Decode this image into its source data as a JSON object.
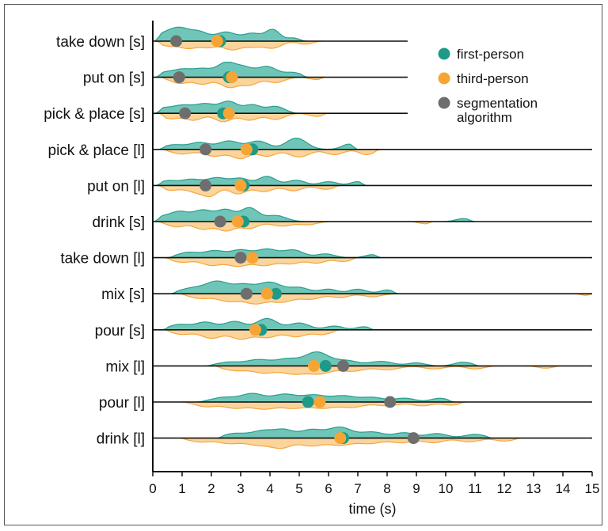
{
  "chart_data": {
    "type": "ridgeline",
    "xlabel": "time (s)",
    "xlim": [
      0,
      15
    ],
    "x_ticks": [
      "0",
      "1",
      "2",
      "3",
      "4",
      "5",
      "6",
      "7",
      "8",
      "9",
      "10",
      "11",
      "12",
      "13",
      "14",
      "15"
    ],
    "colors": {
      "first_person_fill": "#6fc6b8",
      "first_person_line": "#2a9d8f",
      "first_person_dot": "#1f9a86",
      "third_person_fill": "#fbd49c",
      "third_person_line": "#f4a640",
      "third_person_dot": "#f6a535",
      "segmentation_dot": "#6e6e6e"
    },
    "legend": [
      {
        "key": "first",
        "label": "first-person"
      },
      {
        "key": "third",
        "label": "third-person"
      },
      {
        "key": "seg",
        "label": "segmentation algorithm"
      }
    ],
    "rows": [
      {
        "label": "take down [s]",
        "line_end": 8.7,
        "first_mean": 2.3,
        "third_mean": 2.2,
        "seg_mean": 0.8,
        "first_peaks": [
          [
            0.3,
            0.35,
            0.3
          ],
          [
            0.9,
            0.85,
            0.35
          ],
          [
            1.6,
            0.55,
            0.3
          ],
          [
            2.5,
            0.6,
            0.35
          ],
          [
            3.4,
            0.5,
            0.3
          ],
          [
            4.1,
            0.75,
            0.25
          ],
          [
            4.8,
            0.2,
            0.2
          ]
        ],
        "first_range": [
          0.05,
          5.3
        ],
        "third_peaks": [
          [
            0.5,
            0.3,
            0.3
          ],
          [
            1.2,
            0.45,
            0.3
          ],
          [
            1.9,
            0.4,
            0.3
          ],
          [
            2.7,
            0.55,
            0.3
          ],
          [
            3.4,
            0.35,
            0.3
          ],
          [
            4.1,
            0.45,
            0.3
          ],
          [
            5.2,
            0.2,
            0.25
          ]
        ],
        "third_range": [
          0.1,
          5.8
        ]
      },
      {
        "label": "put on [s]",
        "line_end": 8.7,
        "first_mean": 2.6,
        "third_mean": 2.7,
        "seg_mean": 0.9,
        "first_peaks": [
          [
            0.4,
            0.3,
            0.3
          ],
          [
            1.0,
            0.45,
            0.3
          ],
          [
            1.7,
            0.55,
            0.35
          ],
          [
            2.5,
            0.9,
            0.3
          ],
          [
            3.1,
            0.6,
            0.3
          ],
          [
            3.9,
            0.7,
            0.35
          ],
          [
            4.8,
            0.3,
            0.3
          ]
        ],
        "first_range": [
          0.1,
          5.3
        ],
        "third_peaks": [
          [
            0.9,
            0.4,
            0.3
          ],
          [
            1.7,
            0.45,
            0.3
          ],
          [
            2.6,
            0.65,
            0.3
          ],
          [
            3.3,
            0.5,
            0.3
          ],
          [
            4.2,
            0.35,
            0.3
          ],
          [
            5.6,
            0.15,
            0.25
          ]
        ],
        "third_range": [
          0.2,
          5.9
        ]
      },
      {
        "label": "pick & place [s]",
        "line_end": 8.7,
        "first_mean": 2.4,
        "third_mean": 2.6,
        "seg_mean": 1.1,
        "first_peaks": [
          [
            0.3,
            0.3,
            0.3
          ],
          [
            1.0,
            0.5,
            0.35
          ],
          [
            1.8,
            0.6,
            0.35
          ],
          [
            2.6,
            0.75,
            0.3
          ],
          [
            3.4,
            0.55,
            0.3
          ],
          [
            4.2,
            0.45,
            0.3
          ]
        ],
        "first_range": [
          0.1,
          5.0
        ],
        "third_peaks": [
          [
            0.6,
            0.35,
            0.3
          ],
          [
            1.4,
            0.45,
            0.3
          ],
          [
            2.4,
            0.55,
            0.3
          ],
          [
            3.3,
            0.45,
            0.3
          ],
          [
            4.2,
            0.4,
            0.3
          ],
          [
            5.6,
            0.2,
            0.25
          ]
        ],
        "third_range": [
          0.2,
          6.0
        ]
      },
      {
        "label": "pick & place [l]",
        "line_end": 15,
        "first_mean": 3.4,
        "third_mean": 3.2,
        "seg_mean": 1.8,
        "first_peaks": [
          [
            0.7,
            0.3,
            0.35
          ],
          [
            1.6,
            0.45,
            0.35
          ],
          [
            2.6,
            0.55,
            0.35
          ],
          [
            3.6,
            0.55,
            0.35
          ],
          [
            4.9,
            0.75,
            0.35
          ],
          [
            6.7,
            0.35,
            0.25
          ]
        ],
        "first_range": [
          0.2,
          7.0
        ],
        "third_peaks": [
          [
            1.0,
            0.3,
            0.35
          ],
          [
            2.1,
            0.45,
            0.35
          ],
          [
            3.0,
            0.6,
            0.3
          ],
          [
            3.9,
            0.45,
            0.3
          ],
          [
            5.0,
            0.5,
            0.35
          ],
          [
            6.2,
            0.35,
            0.3
          ],
          [
            7.3,
            0.35,
            0.25
          ]
        ],
        "third_range": [
          0.3,
          7.8
        ]
      },
      {
        "label": "put on [l]",
        "line_end": 15,
        "first_mean": 3.1,
        "third_mean": 3.0,
        "seg_mean": 1.8,
        "first_peaks": [
          [
            0.5,
            0.3,
            0.3
          ],
          [
            1.3,
            0.4,
            0.35
          ],
          [
            2.2,
            0.5,
            0.35
          ],
          [
            3.0,
            0.45,
            0.3
          ],
          [
            3.9,
            0.6,
            0.3
          ],
          [
            4.9,
            0.35,
            0.3
          ],
          [
            6.0,
            0.25,
            0.3
          ],
          [
            7.0,
            0.25,
            0.25
          ]
        ],
        "first_range": [
          0.1,
          7.3
        ],
        "third_peaks": [
          [
            0.6,
            0.3,
            0.3
          ],
          [
            1.5,
            0.45,
            0.35
          ],
          [
            2.0,
            0.55,
            0.25
          ],
          [
            2.9,
            0.55,
            0.3
          ],
          [
            3.8,
            0.4,
            0.3
          ],
          [
            4.8,
            0.35,
            0.3
          ],
          [
            5.9,
            0.25,
            0.3
          ]
        ],
        "third_range": [
          0.2,
          6.4
        ]
      },
      {
        "label": "drink [s]",
        "line_end": 15,
        "first_mean": 3.1,
        "third_mean": 2.9,
        "seg_mean": 2.3,
        "first_peaks": [
          [
            0.3,
            0.3,
            0.3
          ],
          [
            0.9,
            0.6,
            0.3
          ],
          [
            1.7,
            0.75,
            0.35
          ],
          [
            2.5,
            0.75,
            0.3
          ],
          [
            3.3,
            0.9,
            0.3
          ],
          [
            4.2,
            0.4,
            0.35
          ],
          [
            10.6,
            0.2,
            0.25
          ]
        ],
        "first_range": [
          0.05,
          11.0
        ],
        "third_peaks": [
          [
            0.8,
            0.35,
            0.3
          ],
          [
            1.7,
            0.5,
            0.3
          ],
          [
            2.5,
            0.6,
            0.3
          ],
          [
            3.3,
            0.45,
            0.3
          ],
          [
            4.4,
            0.3,
            0.35
          ],
          [
            5.3,
            0.2,
            0.3
          ],
          [
            9.3,
            0.15,
            0.2
          ]
        ],
        "third_range": [
          0.1,
          9.6
        ]
      },
      {
        "label": "take down [l]",
        "line_end": 15,
        "first_mean": 3.4,
        "third_mean": 3.4,
        "seg_mean": 3.0,
        "first_peaks": [
          [
            1.2,
            0.35,
            0.35
          ],
          [
            2.1,
            0.45,
            0.35
          ],
          [
            3.0,
            0.5,
            0.35
          ],
          [
            3.9,
            0.55,
            0.35
          ],
          [
            4.8,
            0.5,
            0.35
          ],
          [
            5.9,
            0.25,
            0.3
          ],
          [
            7.5,
            0.2,
            0.25
          ]
        ],
        "first_range": [
          0.5,
          7.8
        ],
        "third_peaks": [
          [
            1.0,
            0.3,
            0.35
          ],
          [
            2.0,
            0.5,
            0.35
          ],
          [
            2.9,
            0.55,
            0.35
          ],
          [
            3.8,
            0.5,
            0.35
          ],
          [
            4.7,
            0.4,
            0.35
          ],
          [
            5.6,
            0.35,
            0.3
          ],
          [
            6.5,
            0.25,
            0.3
          ]
        ],
        "third_range": [
          0.4,
          7.0
        ]
      },
      {
        "label": "mix [s]",
        "line_end": 15,
        "first_mean": 4.2,
        "third_mean": 3.9,
        "seg_mean": 3.2,
        "first_peaks": [
          [
            1.3,
            0.35,
            0.4
          ],
          [
            2.2,
            0.8,
            0.4
          ],
          [
            3.1,
            0.55,
            0.35
          ],
          [
            4.0,
            0.75,
            0.4
          ],
          [
            5.0,
            0.4,
            0.35
          ],
          [
            6.0,
            0.3,
            0.3
          ],
          [
            7.0,
            0.3,
            0.3
          ],
          [
            8.0,
            0.25,
            0.25
          ]
        ],
        "first_range": [
          0.6,
          8.4
        ],
        "third_peaks": [
          [
            1.6,
            0.3,
            0.35
          ],
          [
            2.6,
            0.5,
            0.4
          ],
          [
            3.5,
            0.6,
            0.35
          ],
          [
            4.4,
            0.55,
            0.4
          ],
          [
            5.4,
            0.35,
            0.35
          ],
          [
            6.4,
            0.25,
            0.3
          ],
          [
            7.5,
            0.2,
            0.3
          ],
          [
            14.9,
            0.15,
            0.2
          ]
        ],
        "third_range": [
          0.9,
          15.0
        ]
      },
      {
        "label": "pour [s]",
        "line_end": 15,
        "first_mean": 3.7,
        "third_mean": 3.5,
        "seg_mean": null,
        "first_peaks": [
          [
            0.9,
            0.35,
            0.35
          ],
          [
            1.8,
            0.5,
            0.35
          ],
          [
            2.8,
            0.55,
            0.35
          ],
          [
            3.9,
            0.75,
            0.35
          ],
          [
            5.0,
            0.45,
            0.35
          ],
          [
            6.2,
            0.25,
            0.3
          ],
          [
            7.2,
            0.2,
            0.25
          ]
        ],
        "first_range": [
          0.3,
          7.6
        ],
        "third_peaks": [
          [
            1.0,
            0.3,
            0.35
          ],
          [
            2.0,
            0.55,
            0.35
          ],
          [
            3.0,
            0.6,
            0.35
          ],
          [
            3.9,
            0.5,
            0.35
          ],
          [
            4.9,
            0.45,
            0.35
          ],
          [
            5.8,
            0.3,
            0.3
          ]
        ],
        "third_range": [
          0.4,
          6.4
        ]
      },
      {
        "label": "mix [l]",
        "line_end": 15,
        "first_mean": 5.9,
        "third_mean": 5.5,
        "seg_mean": 6.5,
        "first_peaks": [
          [
            2.6,
            0.25,
            0.4
          ],
          [
            3.6,
            0.4,
            0.4
          ],
          [
            4.6,
            0.45,
            0.4
          ],
          [
            5.6,
            0.9,
            0.4
          ],
          [
            6.6,
            0.35,
            0.4
          ],
          [
            7.8,
            0.3,
            0.4
          ],
          [
            9.0,
            0.2,
            0.3
          ],
          [
            10.6,
            0.25,
            0.3
          ]
        ],
        "first_range": [
          1.8,
          11.2
        ],
        "third_peaks": [
          [
            2.8,
            0.3,
            0.4
          ],
          [
            3.8,
            0.45,
            0.4
          ],
          [
            4.8,
            0.5,
            0.4
          ],
          [
            5.7,
            0.5,
            0.4
          ],
          [
            6.8,
            0.35,
            0.4
          ],
          [
            8.0,
            0.25,
            0.4
          ],
          [
            9.6,
            0.2,
            0.35
          ],
          [
            11.0,
            0.2,
            0.3
          ],
          [
            13.4,
            0.15,
            0.25
          ]
        ],
        "third_range": [
          2.1,
          14.0
        ]
      },
      {
        "label": "pour [l]",
        "line_end": 15,
        "first_mean": 5.3,
        "third_mean": 5.7,
        "seg_mean": 8.1,
        "first_peaks": [
          [
            2.4,
            0.3,
            0.4
          ],
          [
            3.4,
            0.55,
            0.4
          ],
          [
            4.5,
            0.5,
            0.4
          ],
          [
            5.5,
            0.45,
            0.4
          ],
          [
            6.5,
            0.4,
            0.4
          ],
          [
            7.5,
            0.3,
            0.4
          ],
          [
            8.6,
            0.25,
            0.35
          ],
          [
            9.8,
            0.25,
            0.3
          ]
        ],
        "first_range": [
          1.5,
          10.3
        ],
        "third_peaks": [
          [
            1.8,
            0.3,
            0.35
          ],
          [
            2.8,
            0.4,
            0.4
          ],
          [
            3.8,
            0.45,
            0.4
          ],
          [
            4.8,
            0.4,
            0.4
          ],
          [
            5.8,
            0.4,
            0.4
          ],
          [
            6.8,
            0.35,
            0.4
          ],
          [
            8.0,
            0.25,
            0.4
          ],
          [
            9.2,
            0.25,
            0.35
          ],
          [
            10.2,
            0.2,
            0.3
          ]
        ],
        "third_range": [
          1.0,
          10.7
        ]
      },
      {
        "label": "drink [l]",
        "line_end": 15,
        "first_mean": 6.5,
        "third_mean": 6.4,
        "seg_mean": 8.9,
        "first_peaks": [
          [
            2.8,
            0.3,
            0.4
          ],
          [
            3.8,
            0.5,
            0.4
          ],
          [
            4.5,
            0.45,
            0.3
          ],
          [
            5.4,
            0.55,
            0.4
          ],
          [
            6.4,
            0.7,
            0.4
          ],
          [
            7.5,
            0.4,
            0.4
          ],
          [
            8.6,
            0.35,
            0.35
          ],
          [
            9.7,
            0.3,
            0.35
          ],
          [
            11.0,
            0.25,
            0.35
          ]
        ],
        "first_range": [
          2.2,
          11.6
        ],
        "third_peaks": [
          [
            1.6,
            0.25,
            0.35
          ],
          [
            2.6,
            0.35,
            0.4
          ],
          [
            3.6,
            0.45,
            0.4
          ],
          [
            4.4,
            0.6,
            0.35
          ],
          [
            5.4,
            0.5,
            0.4
          ],
          [
            6.4,
            0.45,
            0.4
          ],
          [
            7.4,
            0.35,
            0.4
          ],
          [
            8.5,
            0.3,
            0.4
          ],
          [
            9.6,
            0.3,
            0.35
          ],
          [
            10.8,
            0.25,
            0.35
          ],
          [
            12.0,
            0.2,
            0.3
          ]
        ],
        "third_range": [
          0.9,
          12.6
        ]
      }
    ]
  }
}
